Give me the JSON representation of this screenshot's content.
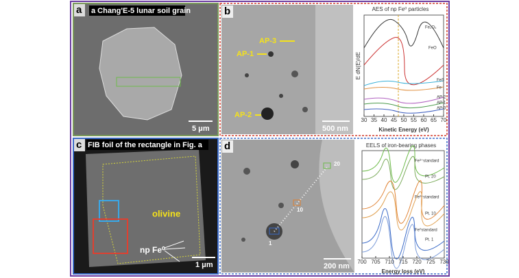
{
  "panel_a": {
    "label": "a",
    "title": "a Chang'E-5 lunar soil grain",
    "scale": "5 μm"
  },
  "panel_b": {
    "label": "b",
    "markers": [
      "AP-3",
      "AP-1",
      "AP-2"
    ],
    "scale": "500 nm",
    "plot": {
      "title": "AES of np Fe⁰ particles",
      "ylabel": "E dN(E)/dE",
      "xlabel": "Kinetic Energy (eV)",
      "curves": [
        "Fe₂O₃",
        "FeO",
        "FeS",
        "Fe",
        "AP-2",
        "AP-1",
        "AP-3"
      ],
      "xlim": [
        30,
        70
      ],
      "xticks": [
        30,
        35,
        40,
        45,
        50,
        55,
        60,
        65,
        70
      ]
    }
  },
  "panel_c": {
    "label": "c",
    "title": "FIB foil of the rectangle  in Fig. a",
    "mineral": "olivine",
    "particles": "np Fe⁰",
    "scale": "1 μm"
  },
  "panel_d": {
    "label": "d",
    "points": [
      "20",
      "10",
      "1"
    ],
    "scale": "200 nm",
    "plot": {
      "title": "EELS of iron-bearing phases",
      "xlabel": "Energy loss (eV)",
      "curves": [
        "Fe³⁺standard",
        "Pt. 20",
        "Fe²⁺standard",
        "Pt. 10",
        "Fe⁰standard",
        "Pt. 1"
      ],
      "xlim": [
        700,
        730
      ],
      "xticks": [
        700,
        705,
        710,
        715,
        720,
        725,
        730
      ]
    }
  }
}
